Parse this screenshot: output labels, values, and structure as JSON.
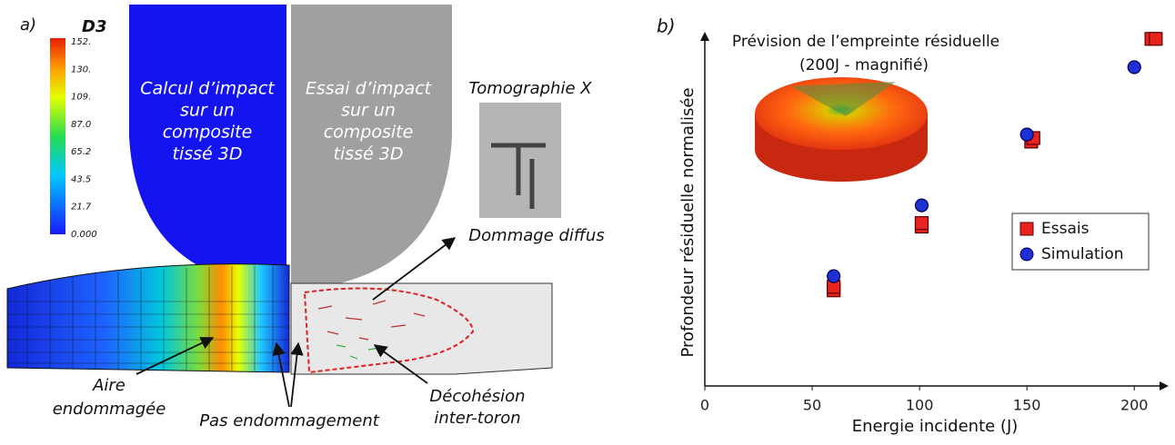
{
  "panel_a": {
    "label": "a)",
    "colorbar": {
      "title": "D3",
      "labels": [
        "152.",
        "130.",
        "109.",
        "87.0",
        "65.2",
        "43.5",
        "21.7",
        "0.000"
      ]
    },
    "calcul": [
      "Calcul d’impact",
      "sur un",
      "composite",
      "tissé 3D"
    ],
    "essai": [
      "Essai d’impact",
      "sur un",
      "composite",
      "tissé 3D"
    ],
    "tomographie": "Tomographie X",
    "dommage": "Dommage diffus",
    "aire": [
      "Aire",
      "endommagée"
    ],
    "pas": "Pas endommagement",
    "decohesion": [
      "Décohésion",
      "inter-toron"
    ]
  },
  "chart_data": {
    "type": "scatter",
    "label": "b)",
    "title": "Prévision de l’empreinte résiduelle",
    "subtitle": "(200J - magnifié)",
    "xlabel": "Energie incidente (J)",
    "ylabel": "Profondeur résiduelle normalisée",
    "xlim": [
      0,
      216
    ],
    "ylim": [
      0,
      1
    ],
    "xticks": [
      0,
      50,
      100,
      150,
      200
    ],
    "legend": "right",
    "series": [
      {
        "name": "Essais",
        "marker": "square",
        "color": "#e8231e",
        "x": [
          60,
          60,
          101,
          101,
          152,
          153,
          208,
          210
        ],
        "values": [
          0.27,
          0.28,
          0.45,
          0.46,
          0.69,
          0.7,
          0.98,
          0.98
        ]
      },
      {
        "name": "Simulation",
        "marker": "circle",
        "color": "#1f2fd6",
        "x": [
          60,
          101,
          150,
          200
        ],
        "values": [
          0.31,
          0.51,
          0.71,
          0.9
        ]
      }
    ]
  }
}
